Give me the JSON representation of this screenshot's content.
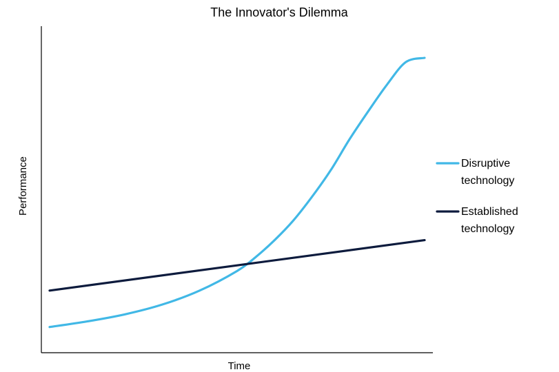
{
  "chart_data": {
    "type": "line",
    "title": "The Innovator's Dilemma",
    "xlabel": "Time",
    "ylabel": "Performance",
    "xlim": [
      0,
      100
    ],
    "ylim": [
      0,
      100
    ],
    "grid": false,
    "legend_position": "right",
    "series": [
      {
        "name": "Disruptive technology",
        "legend_lines": [
          "Disruptive",
          "technology"
        ],
        "color": "#41b8e6",
        "x": [
          0,
          10,
          20,
          30,
          40,
          50,
          55,
          60,
          65,
          70,
          75,
          80,
          85,
          90,
          95,
          100
        ],
        "y": [
          4,
          6,
          8.5,
          12,
          17,
          24,
          29,
          35,
          42,
          50.5,
          60,
          71,
          81,
          90.5,
          98.5,
          100
        ]
      },
      {
        "name": "Established technology",
        "legend_lines": [
          "Established",
          "technology"
        ],
        "color": "#0d1b3d",
        "x": [
          0,
          100
        ],
        "y": [
          17,
          35
        ]
      }
    ]
  }
}
